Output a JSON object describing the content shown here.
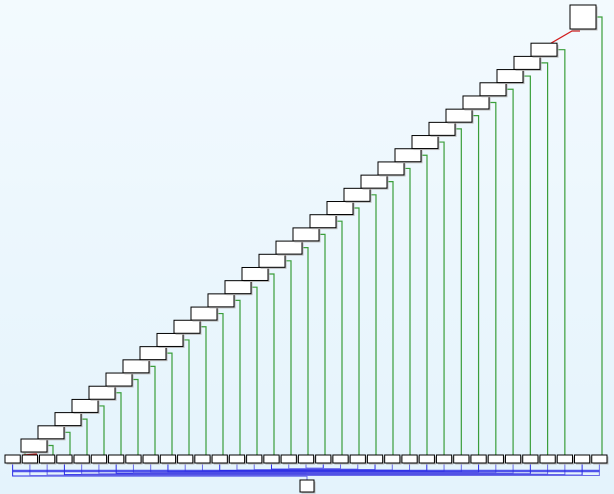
{
  "diagram": {
    "kind": "staircase-tree",
    "stair_node_count": 32,
    "leaf_row_count": 35,
    "sink_node_count": 1,
    "colors": {
      "background_top": "#f3fafe",
      "background_bottom": "#e4f3fc",
      "node_fill": "#ffffff",
      "node_border": "#000000",
      "node_shadow": "#b8b8b8",
      "stair_connector": "#d21e1e",
      "green_edge": "#3a9e3a",
      "blue_edge": "#2a2ae6",
      "blue_edge_light": "#6a6ae6"
    }
  }
}
